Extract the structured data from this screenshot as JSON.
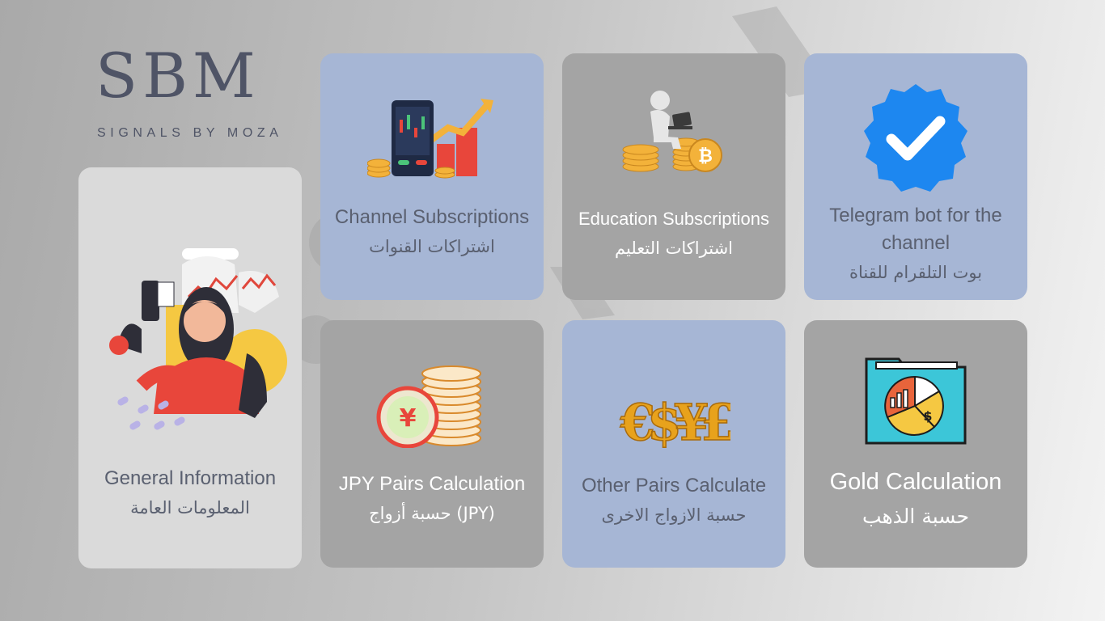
{
  "logo": {
    "letters": "SBM",
    "tagline": "SIGNALS BY MOZA"
  },
  "cards": {
    "general": {
      "en": "General Information",
      "ar": "المعلومات العامة",
      "icon": "woman-trader-illustration"
    },
    "channel": {
      "en": "Channel Subscriptions",
      "ar": "اشتراكات القنوات",
      "icon": "phone-chart-coins-icon"
    },
    "education": {
      "en": "Education Subscriptions",
      "ar": "اشتراكات التعليم",
      "icon": "person-laptop-bitcoin-icon"
    },
    "telegram": {
      "en1": "Telegram bot for the",
      "en2": "channel",
      "ar": "بوت التلقرام للقناة",
      "icon": "verified-check-badge-icon"
    },
    "jpy": {
      "en": "JPY Pairs Calculation",
      "ar": "حسبة أزواج (JPY)",
      "icon": "yen-coin-stack-icon",
      "glyph": "¥"
    },
    "other": {
      "en": "Other Pairs Calculate",
      "ar": "حسبة الازواج الاخرى",
      "icon": "currency-symbols-icon",
      "glyph": "€$¥£"
    },
    "gold": {
      "en": "Gold Calculation",
      "ar": "حسبة الذهب",
      "icon": "pie-chart-folder-icon",
      "glyph": "$"
    }
  },
  "colors": {
    "blue_card": "#a6b6d5",
    "gray_card": "#a4a4a4",
    "light_card": "#dadada",
    "text_dark": "#5a6070",
    "logo": "#4f5466"
  }
}
